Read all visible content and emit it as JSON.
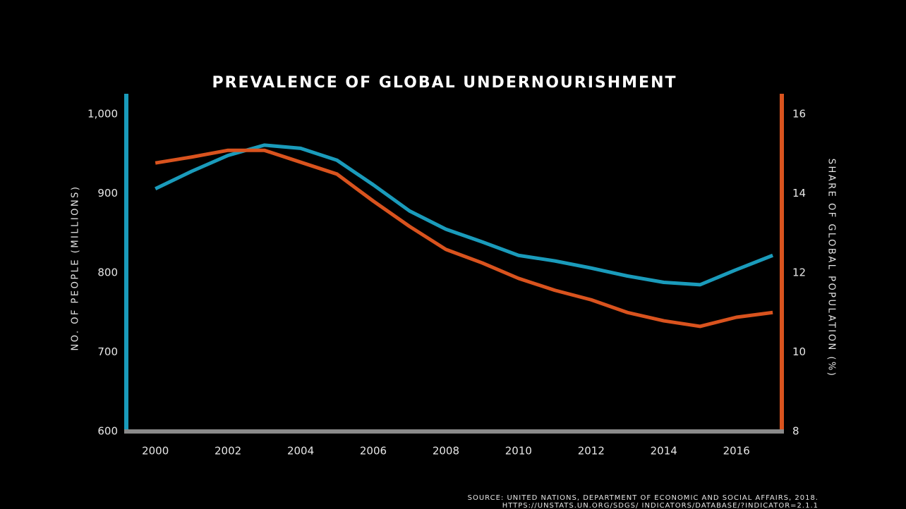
{
  "chart_data": {
    "type": "line",
    "title": "PREVALENCE OF GLOBAL UNDERNOURISHMENT",
    "y_label": "NO. OF PEOPLE (MILLIONS)",
    "y2_label": "SHARE OF GLOBAL POPULATION (%)",
    "source": [
      "SOURCE: UNITED NATIONS, DEPARTMENT OF ECONOMIC AND SOCIAL AFFAIRS, 2018.",
      "HTTPS://UNSTATS.UN.ORG/SDGS/ INDICATORS/DATABASE/?INDICATOR=2.1.1"
    ],
    "x": [
      2000,
      2001,
      2002,
      2003,
      2004,
      2005,
      2006,
      2007,
      2008,
      2009,
      2010,
      2011,
      2012,
      2013,
      2014,
      2015,
      2016,
      2017
    ],
    "xlim": [
      1999.2,
      2017.25
    ],
    "xticks": [
      2000,
      2002,
      2004,
      2006,
      2008,
      2010,
      2012,
      2014,
      2016
    ],
    "ylim": [
      600,
      1000
    ],
    "yticks": [
      600,
      700,
      800,
      900,
      {
        "value": 1000,
        "label": "1,000"
      }
    ],
    "y2lim": [
      8,
      16
    ],
    "y2ticks": [
      8,
      10,
      12,
      14,
      16
    ],
    "grid": false,
    "series": [
      {
        "name": "Number of people",
        "color": "#1a9bbb",
        "values": [
          906,
          928,
          948,
          961,
          957,
          942,
          911,
          878,
          855,
          839,
          822,
          815,
          806,
          796,
          788,
          785,
          804,
          822
        ]
      },
      {
        "name": "Share of global population",
        "color": "#d9531e",
        "axis": "y2",
        "values": [
          14.77,
          14.92,
          15.09,
          15.09,
          14.79,
          14.49,
          13.81,
          13.17,
          12.59,
          12.25,
          11.86,
          11.56,
          11.32,
          11.0,
          10.79,
          10.65,
          10.88,
          11.0
        ]
      }
    ]
  }
}
